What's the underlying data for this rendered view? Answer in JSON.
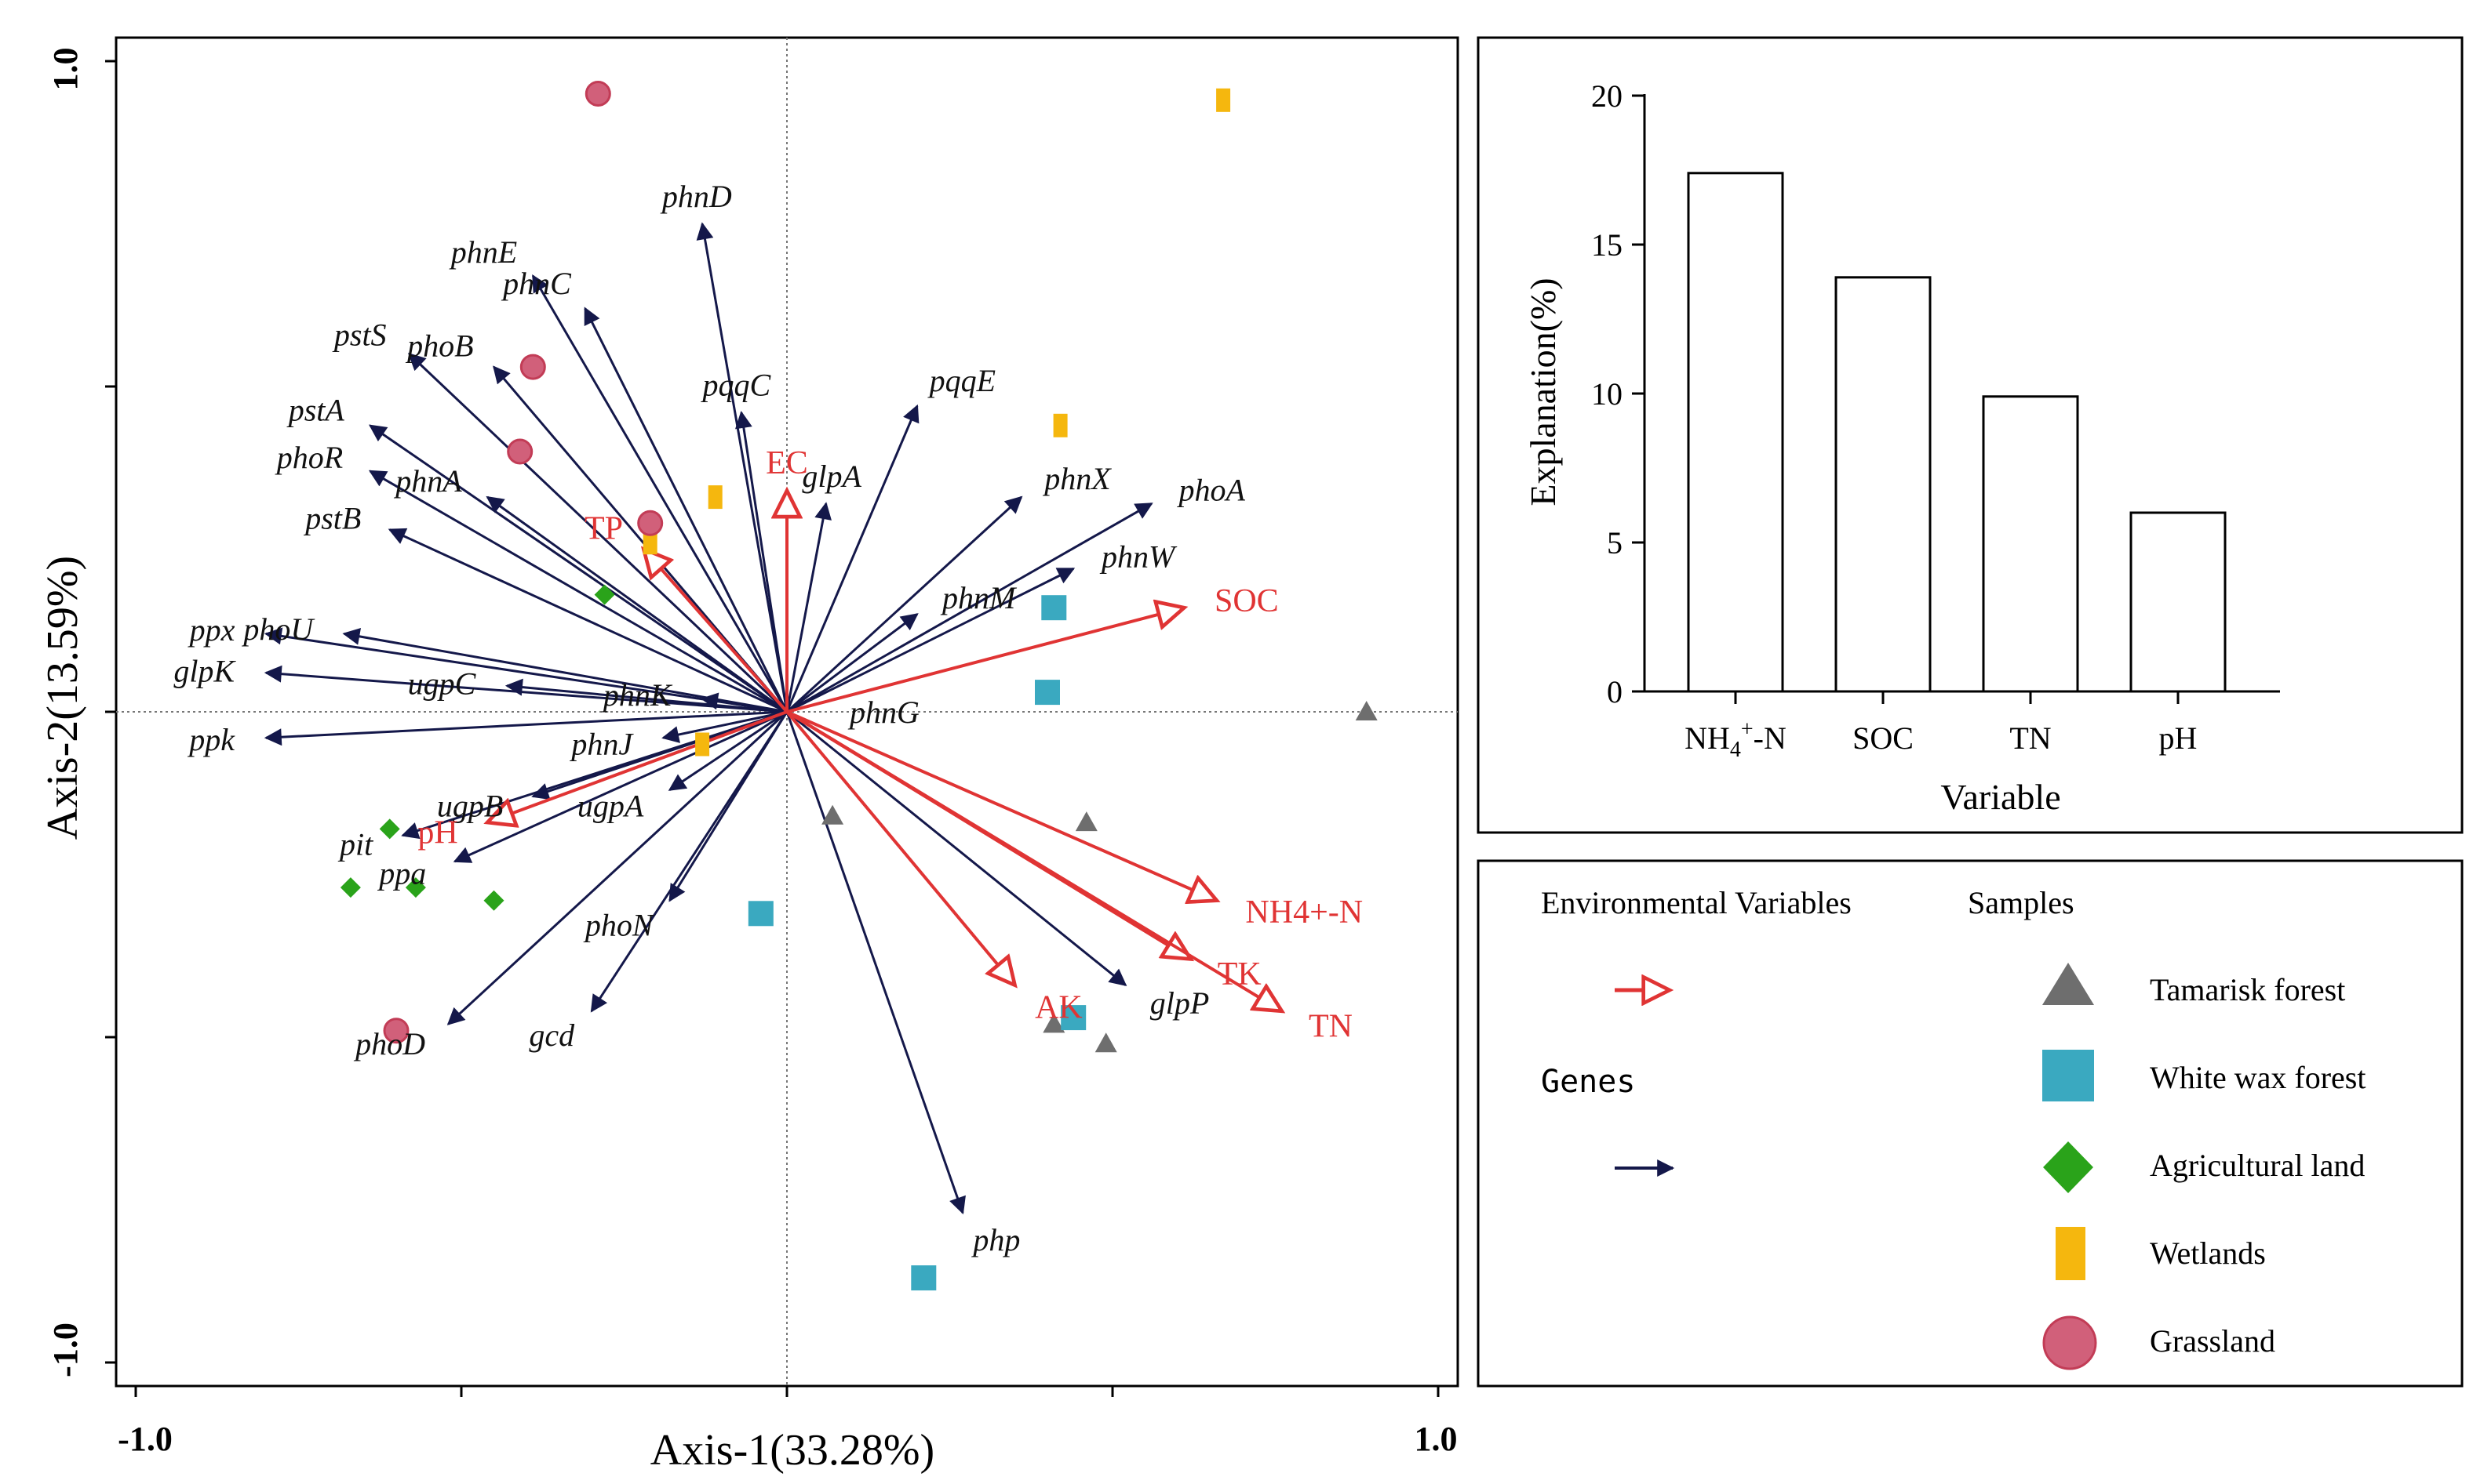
{
  "chart_data": [
    {
      "type": "scatter",
      "subtype": "rda_biplot",
      "xlabel": "Axis-1(33.28%)",
      "ylabel": "Axis-2(13.59%)",
      "xlim": [
        -1.0,
        1.0
      ],
      "ylim": [
        -1.0,
        1.0
      ],
      "x_tick_labels": [
        "-1.0",
        "1.0"
      ],
      "y_tick_labels": [
        "1.0",
        "-1.0"
      ],
      "reference_lines": "dotted at x=0 and y=0",
      "environmental_variables": [
        {
          "name": "EC",
          "x": 0.0,
          "y": 0.34
        },
        {
          "name": "TP",
          "x": -0.22,
          "y": 0.25
        },
        {
          "name": "SOC",
          "x": 0.61,
          "y": 0.16
        },
        {
          "name": "pH",
          "x": -0.46,
          "y": -0.17
        },
        {
          "name": "NH4+-N",
          "x": 0.66,
          "y": -0.29
        },
        {
          "name": "TK",
          "x": 0.62,
          "y": -0.38
        },
        {
          "name": "TN",
          "x": 0.76,
          "y": -0.46
        },
        {
          "name": "AK",
          "x": 0.35,
          "y": -0.42
        }
      ],
      "genes": [
        {
          "name": "phnD",
          "x": -0.13,
          "y": 0.75
        },
        {
          "name": "phnE",
          "x": -0.39,
          "y": 0.67
        },
        {
          "name": "phnC",
          "x": -0.31,
          "y": 0.62
        },
        {
          "name": "pstS",
          "x": -0.58,
          "y": 0.55
        },
        {
          "name": "phoB",
          "x": -0.45,
          "y": 0.53
        },
        {
          "name": "pqqC",
          "x": -0.07,
          "y": 0.46
        },
        {
          "name": "pqqE",
          "x": 0.2,
          "y": 0.47
        },
        {
          "name": "pstA",
          "x": -0.64,
          "y": 0.44
        },
        {
          "name": "phnX",
          "x": 0.36,
          "y": 0.33
        },
        {
          "name": "phoA",
          "x": 0.56,
          "y": 0.32
        },
        {
          "name": "phnA",
          "x": -0.46,
          "y": 0.33
        },
        {
          "name": "phoR",
          "x": -0.64,
          "y": 0.37
        },
        {
          "name": "glpA",
          "x": 0.06,
          "y": 0.32
        },
        {
          "name": "pstB",
          "x": -0.61,
          "y": 0.28
        },
        {
          "name": "phnW",
          "x": 0.44,
          "y": 0.22
        },
        {
          "name": "phnM",
          "x": 0.2,
          "y": 0.15
        },
        {
          "name": "phoU",
          "x": -0.68,
          "y": 0.12
        },
        {
          "name": "ppx",
          "x": -0.8,
          "y": 0.12
        },
        {
          "name": "phnK",
          "x": -0.13,
          "y": 0.02
        },
        {
          "name": "glpK",
          "x": -0.8,
          "y": 0.06
        },
        {
          "name": "ugpC",
          "x": -0.43,
          "y": 0.04
        },
        {
          "name": "phnJ",
          "x": -0.19,
          "y": -0.04
        },
        {
          "name": "ppk",
          "x": -0.8,
          "y": -0.04
        },
        {
          "name": "phnG",
          "x": 0.0,
          "y": 0.0
        },
        {
          "name": "ugpB",
          "x": -0.39,
          "y": -0.13
        },
        {
          "name": "ugpA",
          "x": -0.18,
          "y": -0.12
        },
        {
          "name": "pit",
          "x": -0.59,
          "y": -0.19
        },
        {
          "name": "ppa",
          "x": -0.51,
          "y": -0.23
        },
        {
          "name": "phoN",
          "x": -0.18,
          "y": -0.29
        },
        {
          "name": "gcd",
          "x": -0.3,
          "y": -0.46
        },
        {
          "name": "phoD",
          "x": -0.52,
          "y": -0.48
        },
        {
          "name": "glpP",
          "x": 0.52,
          "y": -0.42
        },
        {
          "name": "php",
          "x": 0.27,
          "y": -0.77
        }
      ],
      "samples": [
        {
          "group": "Tamarisk forest",
          "points": [
            [
              0.89,
              0.0
            ],
            [
              0.07,
              -0.16
            ],
            [
              0.46,
              -0.17
            ],
            [
              0.41,
              -0.48
            ],
            [
              0.49,
              -0.51
            ]
          ]
        },
        {
          "group": "White wax forest",
          "points": [
            [
              0.41,
              0.16
            ],
            [
              0.4,
              0.03
            ],
            [
              -0.04,
              -0.31
            ],
            [
              0.44,
              -0.47
            ],
            [
              0.21,
              -0.87
            ]
          ]
        },
        {
          "group": "Agricultural land",
          "points": [
            [
              -0.28,
              0.18
            ],
            [
              -0.61,
              -0.18
            ],
            [
              -0.67,
              -0.27
            ],
            [
              -0.57,
              -0.27
            ],
            [
              -0.45,
              -0.29
            ]
          ]
        },
        {
          "group": "Wetlands",
          "points": [
            [
              0.67,
              0.94
            ],
            [
              0.42,
              0.44
            ],
            [
              -0.11,
              0.33
            ],
            [
              -0.21,
              0.26
            ],
            [
              -0.13,
              -0.05
            ]
          ]
        },
        {
          "group": "Grassland",
          "points": [
            [
              -0.29,
              0.95
            ],
            [
              -0.39,
              0.53
            ],
            [
              -0.41,
              0.4
            ],
            [
              -0.21,
              0.29
            ],
            [
              -0.6,
              -0.49
            ]
          ]
        }
      ]
    },
    {
      "type": "bar",
      "xlabel": "Variable",
      "ylabel": "Explanation(%)",
      "ylim": [
        0,
        20
      ],
      "y_ticks": [
        "0",
        "5",
        "10",
        "15",
        "20"
      ],
      "categories": [
        "NH4+-N",
        "SOC",
        "TN",
        "pH"
      ],
      "values": [
        17.4,
        13.9,
        9.9,
        6.0
      ]
    }
  ],
  "bar_axis_labels": {
    "nh4_base": "NH",
    "nh4_sub": "4",
    "nh4_sup": "+",
    "nh4_tail": "-N"
  },
  "legend": {
    "env_title": "Environmental Variables",
    "samples_title": "Samples",
    "genes_label": "Genes",
    "groups": [
      {
        "name": "Tamarisk forest",
        "shape": "triangle",
        "color": "#6e6e6e"
      },
      {
        "name": "White wax forest",
        "shape": "square",
        "color": "#3aa9c0"
      },
      {
        "name": "Agricultural land",
        "shape": "diamond",
        "color": "#2aa31a"
      },
      {
        "name": "Wetlands",
        "shape": "rect",
        "color": "#f5b70e"
      },
      {
        "name": "Grassland",
        "shape": "circle",
        "color": "#d1607a"
      }
    ]
  },
  "colors": {
    "env_arrow": "#e03434",
    "gene_arrow": "#14184a",
    "axis": "#000000"
  }
}
